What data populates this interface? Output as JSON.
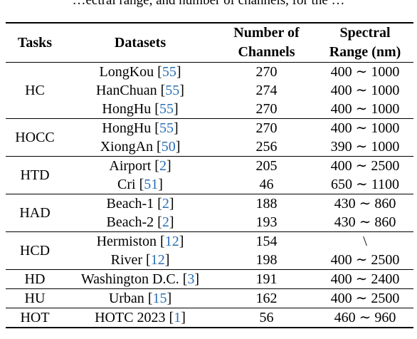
{
  "caption_partial": "…ectral range, and number of channels, for the …",
  "headers": {
    "tasks": "Tasks",
    "datasets": "Datasets",
    "channels_line1": "Number of",
    "channels_line2": "Channels",
    "range_line1": "Spectral",
    "range_line2": "Range (nm)"
  },
  "groups": [
    {
      "task": "HC",
      "rows": [
        {
          "dataset": "LongKou",
          "ref": "55",
          "channels": "270",
          "range": "400 ∼ 1000"
        },
        {
          "dataset": "HanChuan",
          "ref": "55",
          "channels": "274",
          "range": "400 ∼ 1000"
        },
        {
          "dataset": "HongHu",
          "ref": "55",
          "channels": "270",
          "range": "400 ∼ 1000"
        }
      ]
    },
    {
      "task": "HOCC",
      "rows": [
        {
          "dataset": "HongHu",
          "ref": "55",
          "channels": "270",
          "range": "400 ∼ 1000"
        },
        {
          "dataset": "XiongAn",
          "ref": "50",
          "channels": "256",
          "range": "390 ∼ 1000"
        }
      ]
    },
    {
      "task": "HTD",
      "rows": [
        {
          "dataset": "Airport",
          "ref": "2",
          "channels": "205",
          "range": "400 ∼ 2500"
        },
        {
          "dataset": "Cri",
          "ref": "51",
          "channels": "46",
          "range": "650 ∼ 1100"
        }
      ]
    },
    {
      "task": "HAD",
      "rows": [
        {
          "dataset": "Beach-1",
          "ref": "2",
          "channels": "188",
          "range": "430 ∼ 860"
        },
        {
          "dataset": "Beach-2",
          "ref": "2",
          "channels": "193",
          "range": "430 ∼ 860"
        }
      ]
    },
    {
      "task": "HCD",
      "rows": [
        {
          "dataset": "Hermiston",
          "ref": "12",
          "channels": "154",
          "range": "\\"
        },
        {
          "dataset": "River",
          "ref": "12",
          "channels": "198",
          "range": "400 ∼ 2500"
        }
      ]
    },
    {
      "task": "HD",
      "rows": [
        {
          "dataset": "Washington D.C.",
          "ref": "3",
          "channels": "191",
          "range": "400 ∼ 2400"
        }
      ]
    },
    {
      "task": "HU",
      "rows": [
        {
          "dataset": "Urban",
          "ref": "15",
          "channels": "162",
          "range": "400 ∼ 2500"
        }
      ]
    },
    {
      "task": "HOT",
      "rows": [
        {
          "dataset": "HOTC 2023",
          "ref": "1",
          "channels": "56",
          "range": "460 ∼ 960"
        }
      ]
    }
  ]
}
